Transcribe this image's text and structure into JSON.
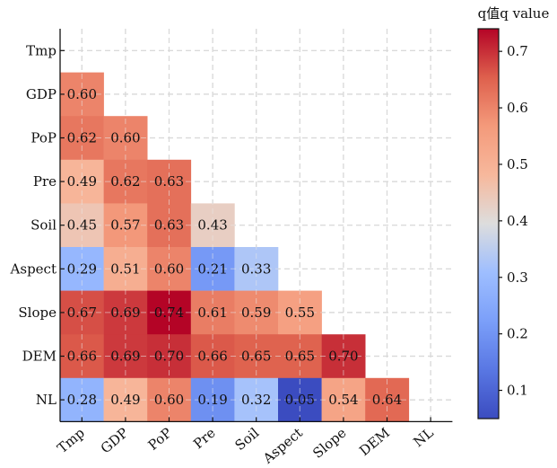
{
  "chart_data": {
    "type": "heatmap",
    "colorbar_title": "q值q value",
    "rows": [
      "Tmp",
      "GDP",
      "PoP",
      "Pre",
      "Soil",
      "Aspect",
      "Slope",
      "DEM",
      "NL"
    ],
    "cols": [
      "Tmp",
      "GDP",
      "PoP",
      "Pre",
      "Soil",
      "Aspect",
      "Slope",
      "DEM",
      "NL"
    ],
    "values": [
      [],
      [
        0.6
      ],
      [
        0.62,
        0.6
      ],
      [
        0.49,
        0.62,
        0.63
      ],
      [
        0.45,
        0.57,
        0.63,
        0.43
      ],
      [
        0.29,
        0.51,
        0.6,
        0.21,
        0.33
      ],
      [
        0.67,
        0.69,
        0.74,
        0.61,
        0.59,
        0.55
      ],
      [
        0.66,
        0.69,
        0.7,
        0.66,
        0.65,
        0.65,
        0.7
      ],
      [
        0.28,
        0.49,
        0.6,
        0.19,
        0.32,
        0.05,
        0.54,
        0.64
      ]
    ],
    "value_labels": [
      [],
      [
        "0.60"
      ],
      [
        "0.62",
        "0.60"
      ],
      [
        "0.49",
        "0.62",
        "0.63"
      ],
      [
        "0.45",
        "0.57",
        "0.63",
        "0.43"
      ],
      [
        "0.29",
        "0.51",
        "0.60",
        "0.21",
        "0.33"
      ],
      [
        "0.67",
        "0.69",
        "0.74",
        "0.61",
        "0.59",
        "0.55"
      ],
      [
        "0.66",
        "0.69",
        "0.70",
        "0.66",
        "0.65",
        "0.65",
        "0.70"
      ],
      [
        "0.28",
        "0.49",
        "0.60",
        "0.19",
        "0.32",
        "0.05",
        "0.54",
        "0.64"
      ]
    ],
    "colorbar": {
      "vmin": 0.05,
      "vmax": 0.74,
      "ticks": [
        0.1,
        0.2,
        0.3,
        0.4,
        0.5,
        0.6,
        0.7
      ],
      "tick_labels": [
        "0.1",
        "0.2",
        "0.3",
        "0.4",
        "0.5",
        "0.6",
        "0.7"
      ],
      "colormap": "coolwarm"
    },
    "grid": true,
    "grid_style": "dashed",
    "colors": {
      "low": "#3b4cc0",
      "mid": "#dddddd",
      "high": "#b40426"
    }
  }
}
